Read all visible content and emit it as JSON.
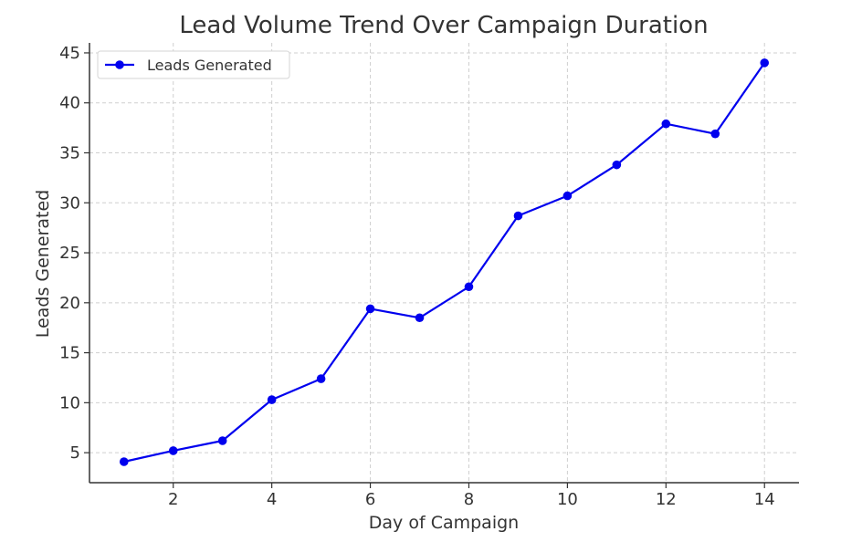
{
  "chart_data": {
    "type": "line",
    "title": "Lead Volume Trend Over Campaign Duration",
    "xlabel": "Day of Campaign",
    "ylabel": "Leads Generated",
    "xlim": [
      0.3,
      14.7
    ],
    "ylim": [
      2,
      46
    ],
    "x_ticks": [
      2,
      4,
      6,
      8,
      10,
      12,
      14
    ],
    "y_ticks": [
      5,
      10,
      15,
      20,
      25,
      30,
      35,
      40,
      45
    ],
    "grid": true,
    "legend_position": "top-left",
    "series": [
      {
        "name": "Leads Generated",
        "color": "#0000ee",
        "marker": "circle",
        "x": [
          1,
          2,
          3,
          4,
          5,
          6,
          7,
          8,
          9,
          10,
          11,
          12,
          13,
          14
        ],
        "values": [
          4.1,
          5.2,
          6.2,
          10.3,
          12.4,
          19.4,
          18.5,
          21.6,
          28.7,
          30.7,
          33.8,
          37.9,
          36.9,
          44.0
        ]
      }
    ]
  }
}
